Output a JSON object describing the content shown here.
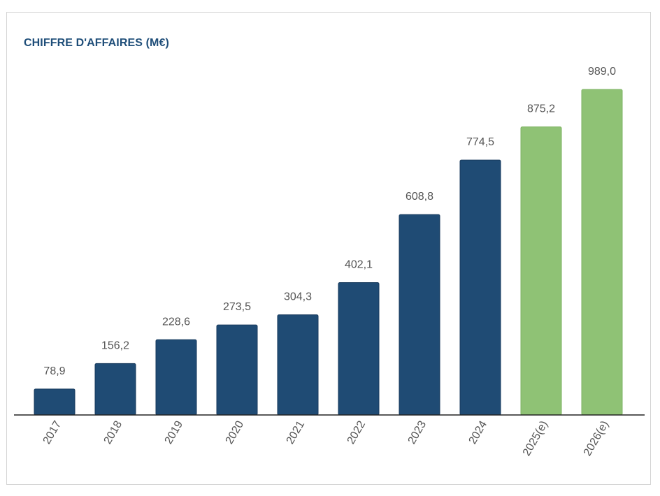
{
  "chart_data": {
    "type": "bar",
    "title": "CHIFFRE D'AFFAIRES (M€)",
    "categories": [
      "2017",
      "2018",
      "2019",
      "2020",
      "2021",
      "2022",
      "2023",
      "2024",
      "2025(e)",
      "2026(e)"
    ],
    "values": [
      78.9,
      156.2,
      228.6,
      273.5,
      304.3,
      402.1,
      608.8,
      774.5,
      875.2,
      989.0
    ],
    "value_labels": [
      "78,9",
      "156,2",
      "228,6",
      "273,5",
      "304,3",
      "402,1",
      "608,8",
      "774,5",
      "875,2",
      "989,0"
    ],
    "estimated": [
      false,
      false,
      false,
      false,
      false,
      false,
      false,
      false,
      true,
      true
    ],
    "xlabel": "",
    "ylabel": "",
    "ylim": [
      0,
      1000
    ],
    "colors": {
      "actual": "#1f4b74",
      "estimate": "#8fc275",
      "axis": "#222222",
      "label": "#555555"
    },
    "grid": false,
    "legend": "none"
  }
}
